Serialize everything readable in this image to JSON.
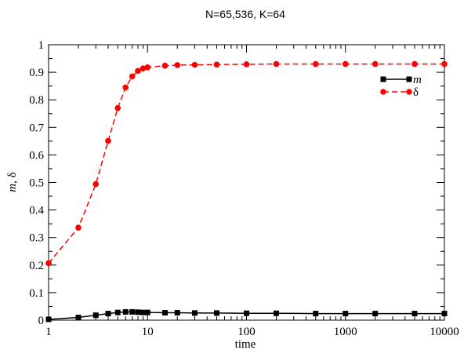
{
  "chart_data": {
    "type": "line",
    "title": "N=65,536, K=64",
    "xlabel": "time",
    "ylabel": "m, δ",
    "xscale": "log",
    "xlim": [
      1,
      10000
    ],
    "ylim": [
      0,
      1
    ],
    "x_ticks": [
      1,
      10,
      100,
      1000,
      10000
    ],
    "x_tick_labels": [
      "1",
      "10",
      "100",
      "1000",
      "10000"
    ],
    "y_ticks": [
      0,
      0.1,
      0.2,
      0.3,
      0.4,
      0.5,
      0.6,
      0.7,
      0.8,
      0.9,
      1
    ],
    "y_tick_labels": [
      "0",
      "0.1",
      "0.2",
      "0.3",
      "0.4",
      "0.5",
      "0.6",
      "0.7",
      "0.8",
      "0.9",
      "1"
    ],
    "grid": false,
    "legend": {
      "placement": "top-right"
    },
    "series": [
      {
        "name": "m",
        "color": "#000000",
        "marker": "square",
        "line": "solid",
        "x": [
          1,
          2,
          3,
          4,
          5,
          6,
          7,
          8,
          9,
          10,
          15,
          20,
          30,
          50,
          100,
          200,
          500,
          1000,
          2000,
          5000,
          10000
        ],
        "y": [
          0.003,
          0.01,
          0.018,
          0.024,
          0.028,
          0.03,
          0.03,
          0.029,
          0.028,
          0.028,
          0.027,
          0.027,
          0.026,
          0.026,
          0.025,
          0.025,
          0.024,
          0.024,
          0.024,
          0.024,
          0.024
        ]
      },
      {
        "name": "δ",
        "color": "#ff0000",
        "marker": "circle",
        "line": "dashed",
        "x": [
          1,
          2,
          3,
          4,
          5,
          6,
          7,
          8,
          9,
          10,
          15,
          20,
          30,
          50,
          100,
          200,
          500,
          1000,
          2000,
          5000,
          10000
        ],
        "y": [
          0.207,
          0.336,
          0.494,
          0.651,
          0.77,
          0.845,
          0.885,
          0.905,
          0.914,
          0.918,
          0.924,
          0.926,
          0.927,
          0.928,
          0.929,
          0.93,
          0.93,
          0.93,
          0.93,
          0.93,
          0.93
        ]
      }
    ]
  }
}
